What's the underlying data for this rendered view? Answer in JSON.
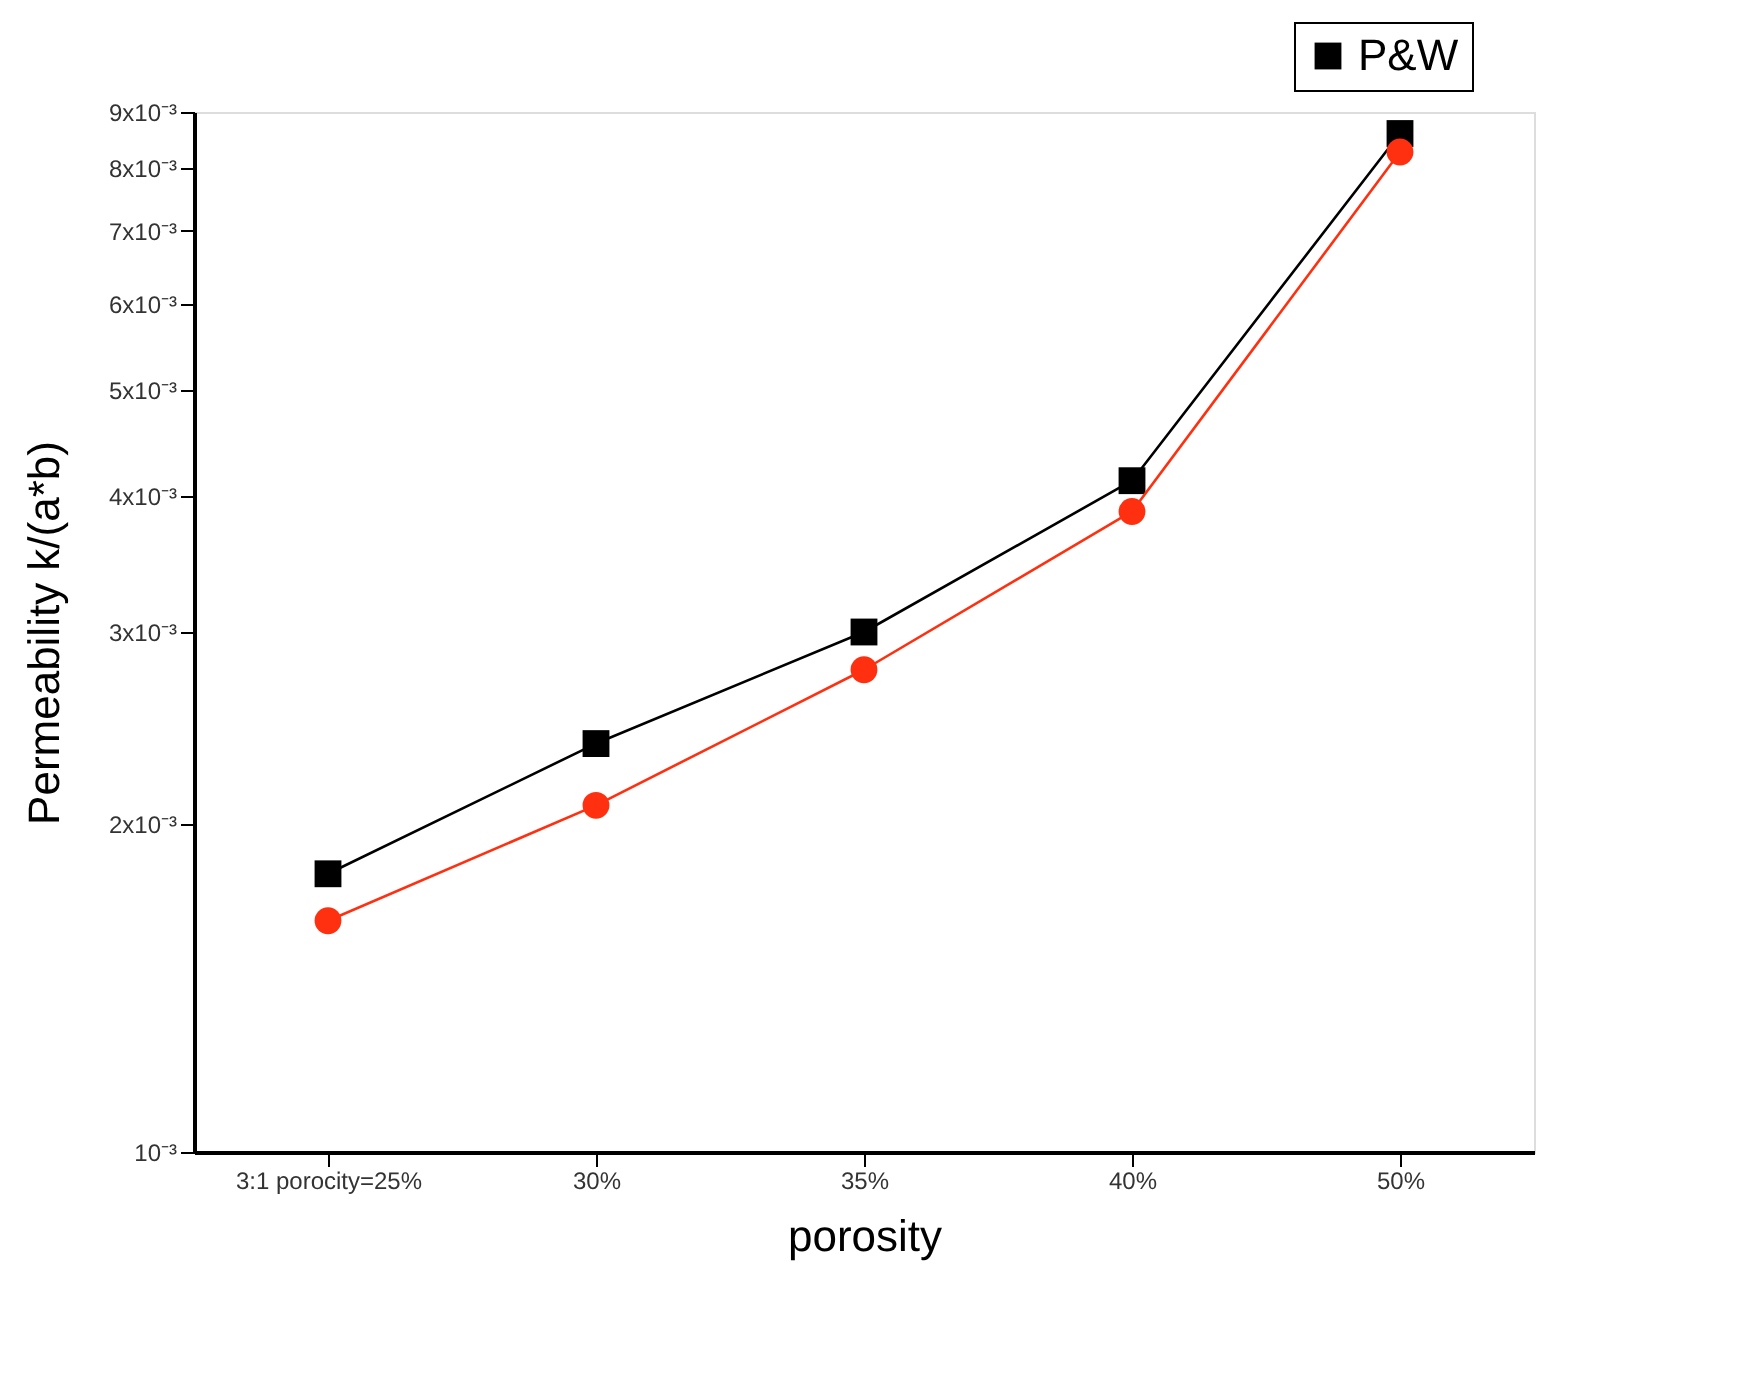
{
  "chart_data": {
    "type": "line",
    "xlabel": "porosity",
    "ylabel": "Permeability k/(a*b)",
    "categories": [
      "3:1 porocity=25%",
      "30%",
      "35%",
      "40%",
      "50%"
    ],
    "series": [
      {
        "name": "P&W",
        "color": "#000000",
        "marker": "square",
        "values": [
          0.0018,
          0.00237,
          0.003,
          0.00413,
          0.0086
        ]
      },
      {
        "color": "#ff3010",
        "marker": "circle",
        "values": [
          0.00163,
          0.00208,
          0.00277,
          0.00387,
          0.00827
        ]
      }
    ],
    "log": true,
    "ylim": [
      0.001,
      0.009
    ],
    "yticks": [
      {
        "value": 0.001,
        "label": "10⁻³"
      },
      {
        "value": 0.002,
        "label": "2x10⁻³"
      },
      {
        "value": 0.003,
        "label": "3x10⁻³"
      },
      {
        "value": 0.004,
        "label": "4x10⁻³"
      },
      {
        "value": 0.005,
        "label": "5x10⁻³"
      },
      {
        "value": 0.006,
        "label": "6x10⁻³"
      },
      {
        "value": 0.007,
        "label": "7x10⁻³"
      },
      {
        "value": 0.008,
        "label": "8x10⁻³"
      },
      {
        "value": 0.009,
        "label": "9x10⁻³"
      }
    ],
    "grid": false,
    "legend": "top right",
    "line_style": "solid"
  }
}
